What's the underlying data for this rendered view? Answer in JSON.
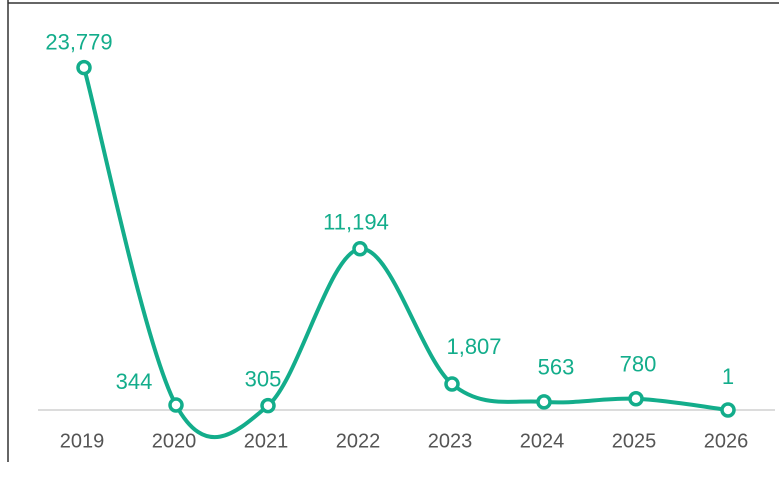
{
  "chart_data": {
    "type": "line",
    "categories": [
      "2019",
      "2020",
      "2021",
      "2022",
      "2023",
      "2024",
      "2025",
      "2026"
    ],
    "values": [
      23779,
      344,
      305,
      11194,
      1807,
      563,
      780,
      1
    ],
    "value_labels": [
      "23,779",
      "344",
      "305",
      "11,194",
      "1,807",
      "563",
      "780",
      "1"
    ],
    "color": "#13ad8b",
    "ylim": [
      0,
      25000
    ]
  }
}
